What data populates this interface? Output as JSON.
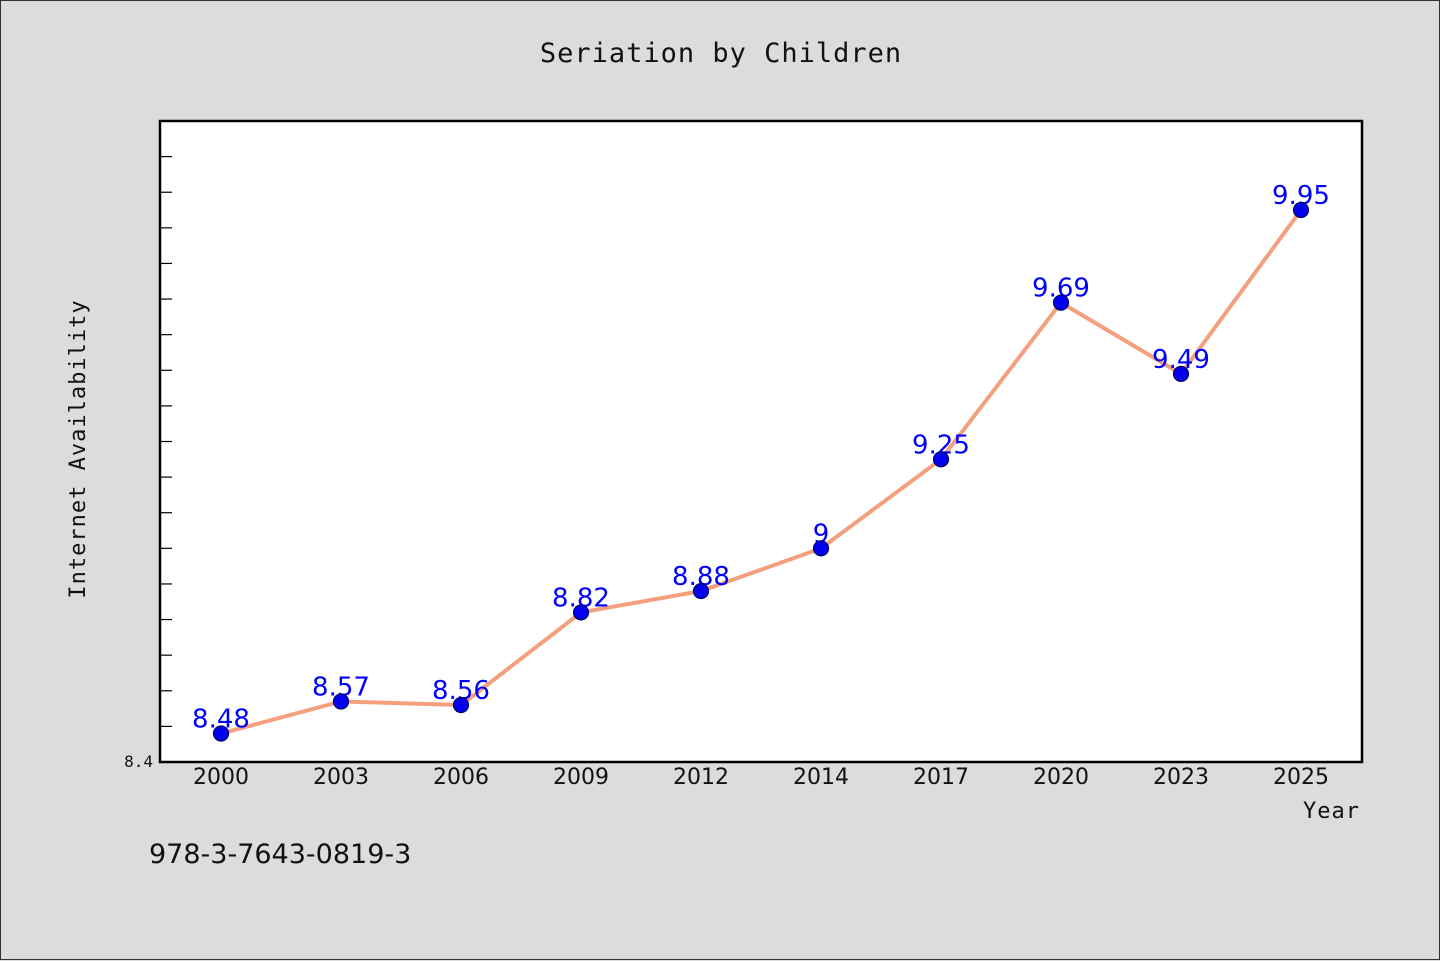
{
  "chart_data": {
    "type": "line",
    "title": "Seriation by Children",
    "xlabel": "Year",
    "ylabel": "Internet Availability",
    "categories": [
      "2000",
      "2003",
      "2006",
      "2009",
      "2012",
      "2014",
      "2017",
      "2020",
      "2023",
      "2025"
    ],
    "series": [
      {
        "values": [
          8.48,
          8.57,
          8.56,
          8.82,
          8.88,
          9.0,
          9.25,
          9.69,
          9.49,
          9.95
        ],
        "labels": [
          "8.48",
          "8.57",
          "8.56",
          "8.82",
          "8.88",
          "9",
          "9.25",
          "9.69",
          "9.49",
          "9.95"
        ]
      }
    ],
    "ylim": [
      8.4,
      10.2
    ],
    "y_tick_label": "8.4",
    "grid": false,
    "colors": {
      "line": "#f4a07e",
      "marker": "#0000ee",
      "marker_edge": "#000066",
      "label": "#0000ff"
    }
  },
  "footnote": "978-3-7643-0819-3"
}
